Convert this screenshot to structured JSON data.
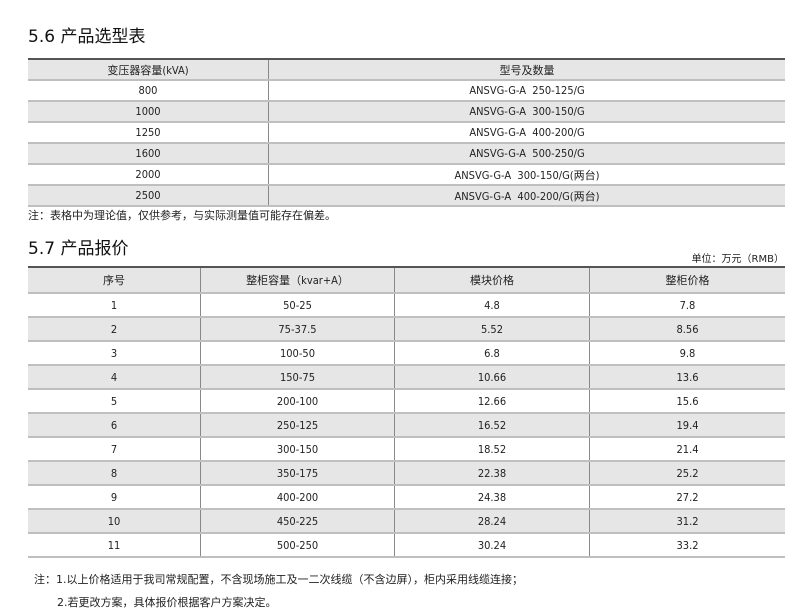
{
  "section1": {
    "title": "5.6 产品选型表",
    "headers": [
      "变压器容量(kVA)",
      "型号及数量"
    ],
    "rows": [
      [
        "800",
        "ANSVG-G-A  250-125/G"
      ],
      [
        "1000",
        "ANSVG-G-A  300-150/G"
      ],
      [
        "1250",
        "ANSVG-G-A  400-200/G"
      ],
      [
        "1600",
        "ANSVG-G-A  500-250/G"
      ],
      [
        "2000",
        "ANSVG-G-A  300-150/G(两台)"
      ],
      [
        "2500",
        "ANSVG-G-A  400-200/G(两台)"
      ]
    ],
    "note": "注：表格中为理论值，仅供参考，与实际测量值可能存在偏差。"
  },
  "section2": {
    "title": "5.7 产品报价",
    "unit": "单位：万元（RMB）",
    "headers": [
      "序号",
      "整柜容量（kvar+A）",
      "模块价格",
      "整柜价格"
    ],
    "rows": [
      [
        "1",
        "50-25",
        "4.8",
        "7.8"
      ],
      [
        "2",
        "75-37.5",
        "5.52",
        "8.56"
      ],
      [
        "3",
        "100-50",
        "6.8",
        "9.8"
      ],
      [
        "4",
        "150-75",
        "10.66",
        "13.6"
      ],
      [
        "5",
        "200-100",
        "12.66",
        "15.6"
      ],
      [
        "6",
        "250-125",
        "16.52",
        "19.4"
      ],
      [
        "7",
        "300-150",
        "18.52",
        "21.4"
      ],
      [
        "8",
        "350-175",
        "22.38",
        "25.2"
      ],
      [
        "9",
        "400-200",
        "24.38",
        "27.2"
      ],
      [
        "10",
        "450-225",
        "28.24",
        "31.2"
      ],
      [
        "11",
        "500-250",
        "30.24",
        "33.2"
      ]
    ],
    "notes": [
      "注：1.以上价格适用于我司常规配置，不含现场施工及一二次线缆（不含边屏），柜内采用线缆连接；",
      "2.若更改方案，具体报价根据客户方案决定。"
    ]
  }
}
